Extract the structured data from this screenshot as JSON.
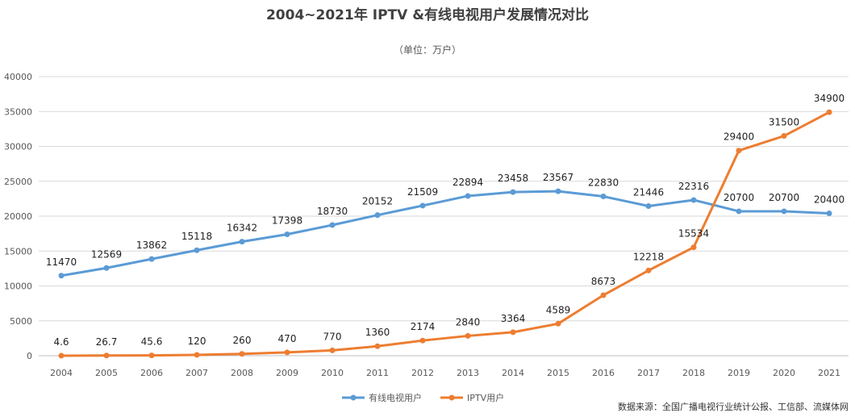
{
  "chart_data": {
    "type": "line",
    "title": "2004~2021年 IPTV &有线电视用户发展情况对比",
    "subtitle": "（单位：万户）",
    "source": "数据来源：全国广播电视行业统计公报、工信部、流媒体网",
    "x": [
      "2004",
      "2005",
      "2006",
      "2007",
      "2008",
      "2009",
      "2010",
      "2011",
      "2012",
      "2013",
      "2014",
      "2015",
      "2016",
      "2017",
      "2018",
      "2019",
      "2020",
      "2021"
    ],
    "ylim": [
      0,
      40000
    ],
    "yticks": [
      0,
      5000,
      10000,
      15000,
      20000,
      25000,
      30000,
      35000,
      40000
    ],
    "grid": true,
    "legend": "bottom",
    "series": [
      {
        "name": "有线电视用户",
        "color": "#5b9bd5",
        "values": [
          11470,
          12569,
          13862,
          15118,
          16342,
          17398,
          18730,
          20152,
          21509,
          22894,
          23458,
          23567,
          22830,
          21446,
          22316,
          20700,
          20700,
          20400
        ],
        "labels": [
          "11470",
          "12569",
          "13862",
          "15118",
          "16342",
          "17398",
          "18730",
          "20152",
          "21509",
          "22894",
          "23458",
          "23567",
          "22830",
          "21446",
          "22316",
          "20700",
          "20700",
          "20400"
        ]
      },
      {
        "name": "IPTV用户",
        "color": "#ed7d31",
        "values": [
          4.6,
          26.7,
          45.6,
          120,
          260,
          470,
          770,
          1360,
          2174,
          2840,
          3364,
          4589,
          8673,
          12218,
          15534,
          29400,
          31500,
          34900
        ],
        "labels": [
          "4.6",
          "26.7",
          "45.6",
          "120",
          "260",
          "470",
          "770",
          "1360",
          "2174",
          "2840",
          "3364",
          "4589",
          "8673",
          "12218",
          "15534",
          "29400",
          "31500",
          "34900"
        ]
      }
    ]
  }
}
